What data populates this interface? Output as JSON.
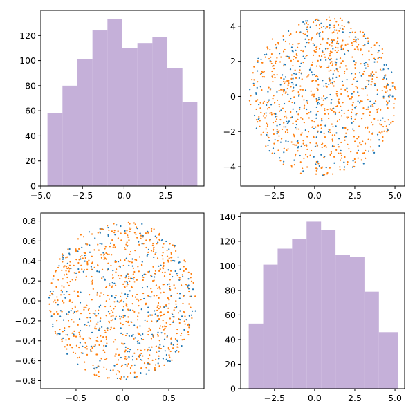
{
  "colors": {
    "hist": "#c5b0d9",
    "scatter_a": "#1f77b4",
    "scatter_b": "#ff7f0e",
    "axes": "#000000",
    "background": "#ffffff"
  },
  "chart_data": [
    {
      "type": "bar",
      "subtype": "histogram",
      "title": "",
      "xlabel": "",
      "ylabel": "",
      "bin_edges": [
        -4.6,
        -3.7,
        -2.8,
        -1.9,
        -1.0,
        -0.1,
        0.8,
        1.7,
        2.6,
        3.5,
        4.4
      ],
      "values": [
        58,
        80,
        101,
        124,
        133,
        110,
        114,
        119,
        94,
        67
      ],
      "xlim": [
        -5.0,
        4.8
      ],
      "ylim": [
        0,
        140
      ],
      "xticks": [
        -5.0,
        -2.5,
        0.0,
        2.5
      ],
      "xtick_labels": [
        "−5.0",
        "−2.5",
        "0.0",
        "2.5"
      ],
      "yticks": [
        0,
        20,
        40,
        60,
        80,
        100,
        120
      ],
      "ytick_labels": [
        "0",
        "20",
        "40",
        "60",
        "80",
        "100",
        "120"
      ],
      "grid": false,
      "color": "#c5b0d9"
    },
    {
      "type": "scatter",
      "title": "",
      "xlabel": "",
      "ylabel": "",
      "distribution": "uniform points inside a circle, center (0.5, 0), radius 4.6",
      "series": [
        {
          "color": "#1f77b4",
          "approx_count": 300
        },
        {
          "color": "#ff7f0e",
          "approx_count": 700
        }
      ],
      "xlim": [
        -4.6,
        5.6
      ],
      "ylim": [
        -5.1,
        4.9
      ],
      "xticks": [
        -2.5,
        0.0,
        2.5,
        5.0
      ],
      "xtick_labels": [
        "−2.5",
        "0.0",
        "2.5",
        "5.0"
      ],
      "yticks": [
        -4,
        -2,
        0,
        2,
        4
      ],
      "ytick_labels": [
        "−4",
        "−2",
        "0",
        "2",
        "4"
      ],
      "grid": false
    },
    {
      "type": "scatter",
      "title": "",
      "xlabel": "",
      "ylabel": "",
      "distribution": "uniform points inside a circle, center (0, 0), radius 0.8",
      "series": [
        {
          "color": "#1f77b4",
          "approx_count": 300
        },
        {
          "color": "#ff7f0e",
          "approx_count": 700
        }
      ],
      "xlim": [
        -0.88,
        0.88
      ],
      "ylim": [
        -0.88,
        0.88
      ],
      "xticks": [
        -0.5,
        0.0,
        0.5
      ],
      "xtick_labels": [
        "−0.5",
        "0.0",
        "0.5"
      ],
      "yticks": [
        -0.8,
        -0.6,
        -0.4,
        -0.2,
        0.0,
        0.2,
        0.4,
        0.6,
        0.8
      ],
      "ytick_labels": [
        "−0.8",
        "−0.6",
        "−0.4",
        "−0.2",
        "0.0",
        "0.2",
        "0.4",
        "0.6",
        "0.8"
      ],
      "grid": false
    },
    {
      "type": "bar",
      "subtype": "histogram",
      "title": "",
      "xlabel": "",
      "ylabel": "",
      "bin_edges": [
        -4.1,
        -3.2,
        -2.3,
        -1.4,
        -0.5,
        0.4,
        1.3,
        2.2,
        3.1,
        4.0,
        5.2
      ],
      "values": [
        53,
        101,
        114,
        122,
        136,
        129,
        109,
        107,
        79,
        46
      ],
      "xlim": [
        -4.6,
        5.6
      ],
      "ylim": [
        0,
        143
      ],
      "xticks": [
        -2.5,
        0.0,
        2.5,
        5.0
      ],
      "xtick_labels": [
        "−2.5",
        "0.0",
        "2.5",
        "5.0"
      ],
      "yticks": [
        0,
        20,
        40,
        60,
        80,
        100,
        120,
        140
      ],
      "ytick_labels": [
        "0",
        "20",
        "40",
        "60",
        "80",
        "100",
        "120",
        "140"
      ],
      "grid": false,
      "color": "#c5b0d9"
    }
  ]
}
